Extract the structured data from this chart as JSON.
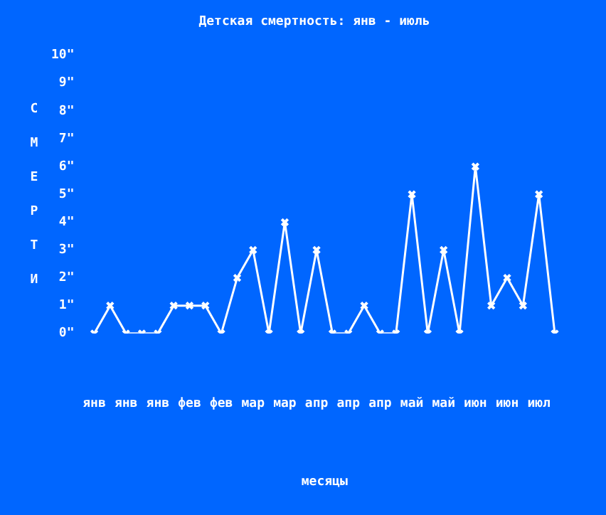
{
  "chart_data": {
    "type": "line",
    "title": "Детская смертность: янв - июль",
    "xlabel": "месяцы",
    "ylabel": "СМЕРТИ",
    "categories": [
      "янв",
      null,
      "янв",
      null,
      "янв",
      null,
      "фев",
      null,
      "фев",
      null,
      "мар",
      null,
      "мар",
      null,
      "апр",
      null,
      "апр",
      null,
      "апр",
      null,
      "май",
      null,
      "май",
      null,
      "июн",
      null,
      "июн",
      null,
      "июл",
      null
    ],
    "series": [
      {
        "color": "#ffffff",
        "values": [
          0,
          1,
          0,
          0,
          0,
          1,
          1,
          1,
          0,
          2,
          3,
          0,
          4,
          0,
          3,
          0,
          0,
          1,
          0,
          0,
          5,
          0,
          3,
          0,
          6,
          1,
          2,
          1,
          5,
          0
        ]
      }
    ],
    "ylim": [
      0,
      10
    ],
    "yticks": [
      {
        "value": 0,
        "label": "0\""
      },
      {
        "value": 1,
        "label": "1\""
      },
      {
        "value": 2,
        "label": "2\""
      },
      {
        "value": 3,
        "label": "3\""
      },
      {
        "value": 4,
        "label": "4\""
      },
      {
        "value": 5,
        "label": "5\""
      },
      {
        "value": 6,
        "label": "6\""
      },
      {
        "value": 7,
        "label": "7\""
      },
      {
        "value": 8,
        "label": "8\""
      },
      {
        "value": 9,
        "label": "9\""
      },
      {
        "value": 10,
        "label": "10\""
      }
    ],
    "grid": false,
    "legend": false,
    "marker": "cross",
    "line_style": "solid"
  }
}
